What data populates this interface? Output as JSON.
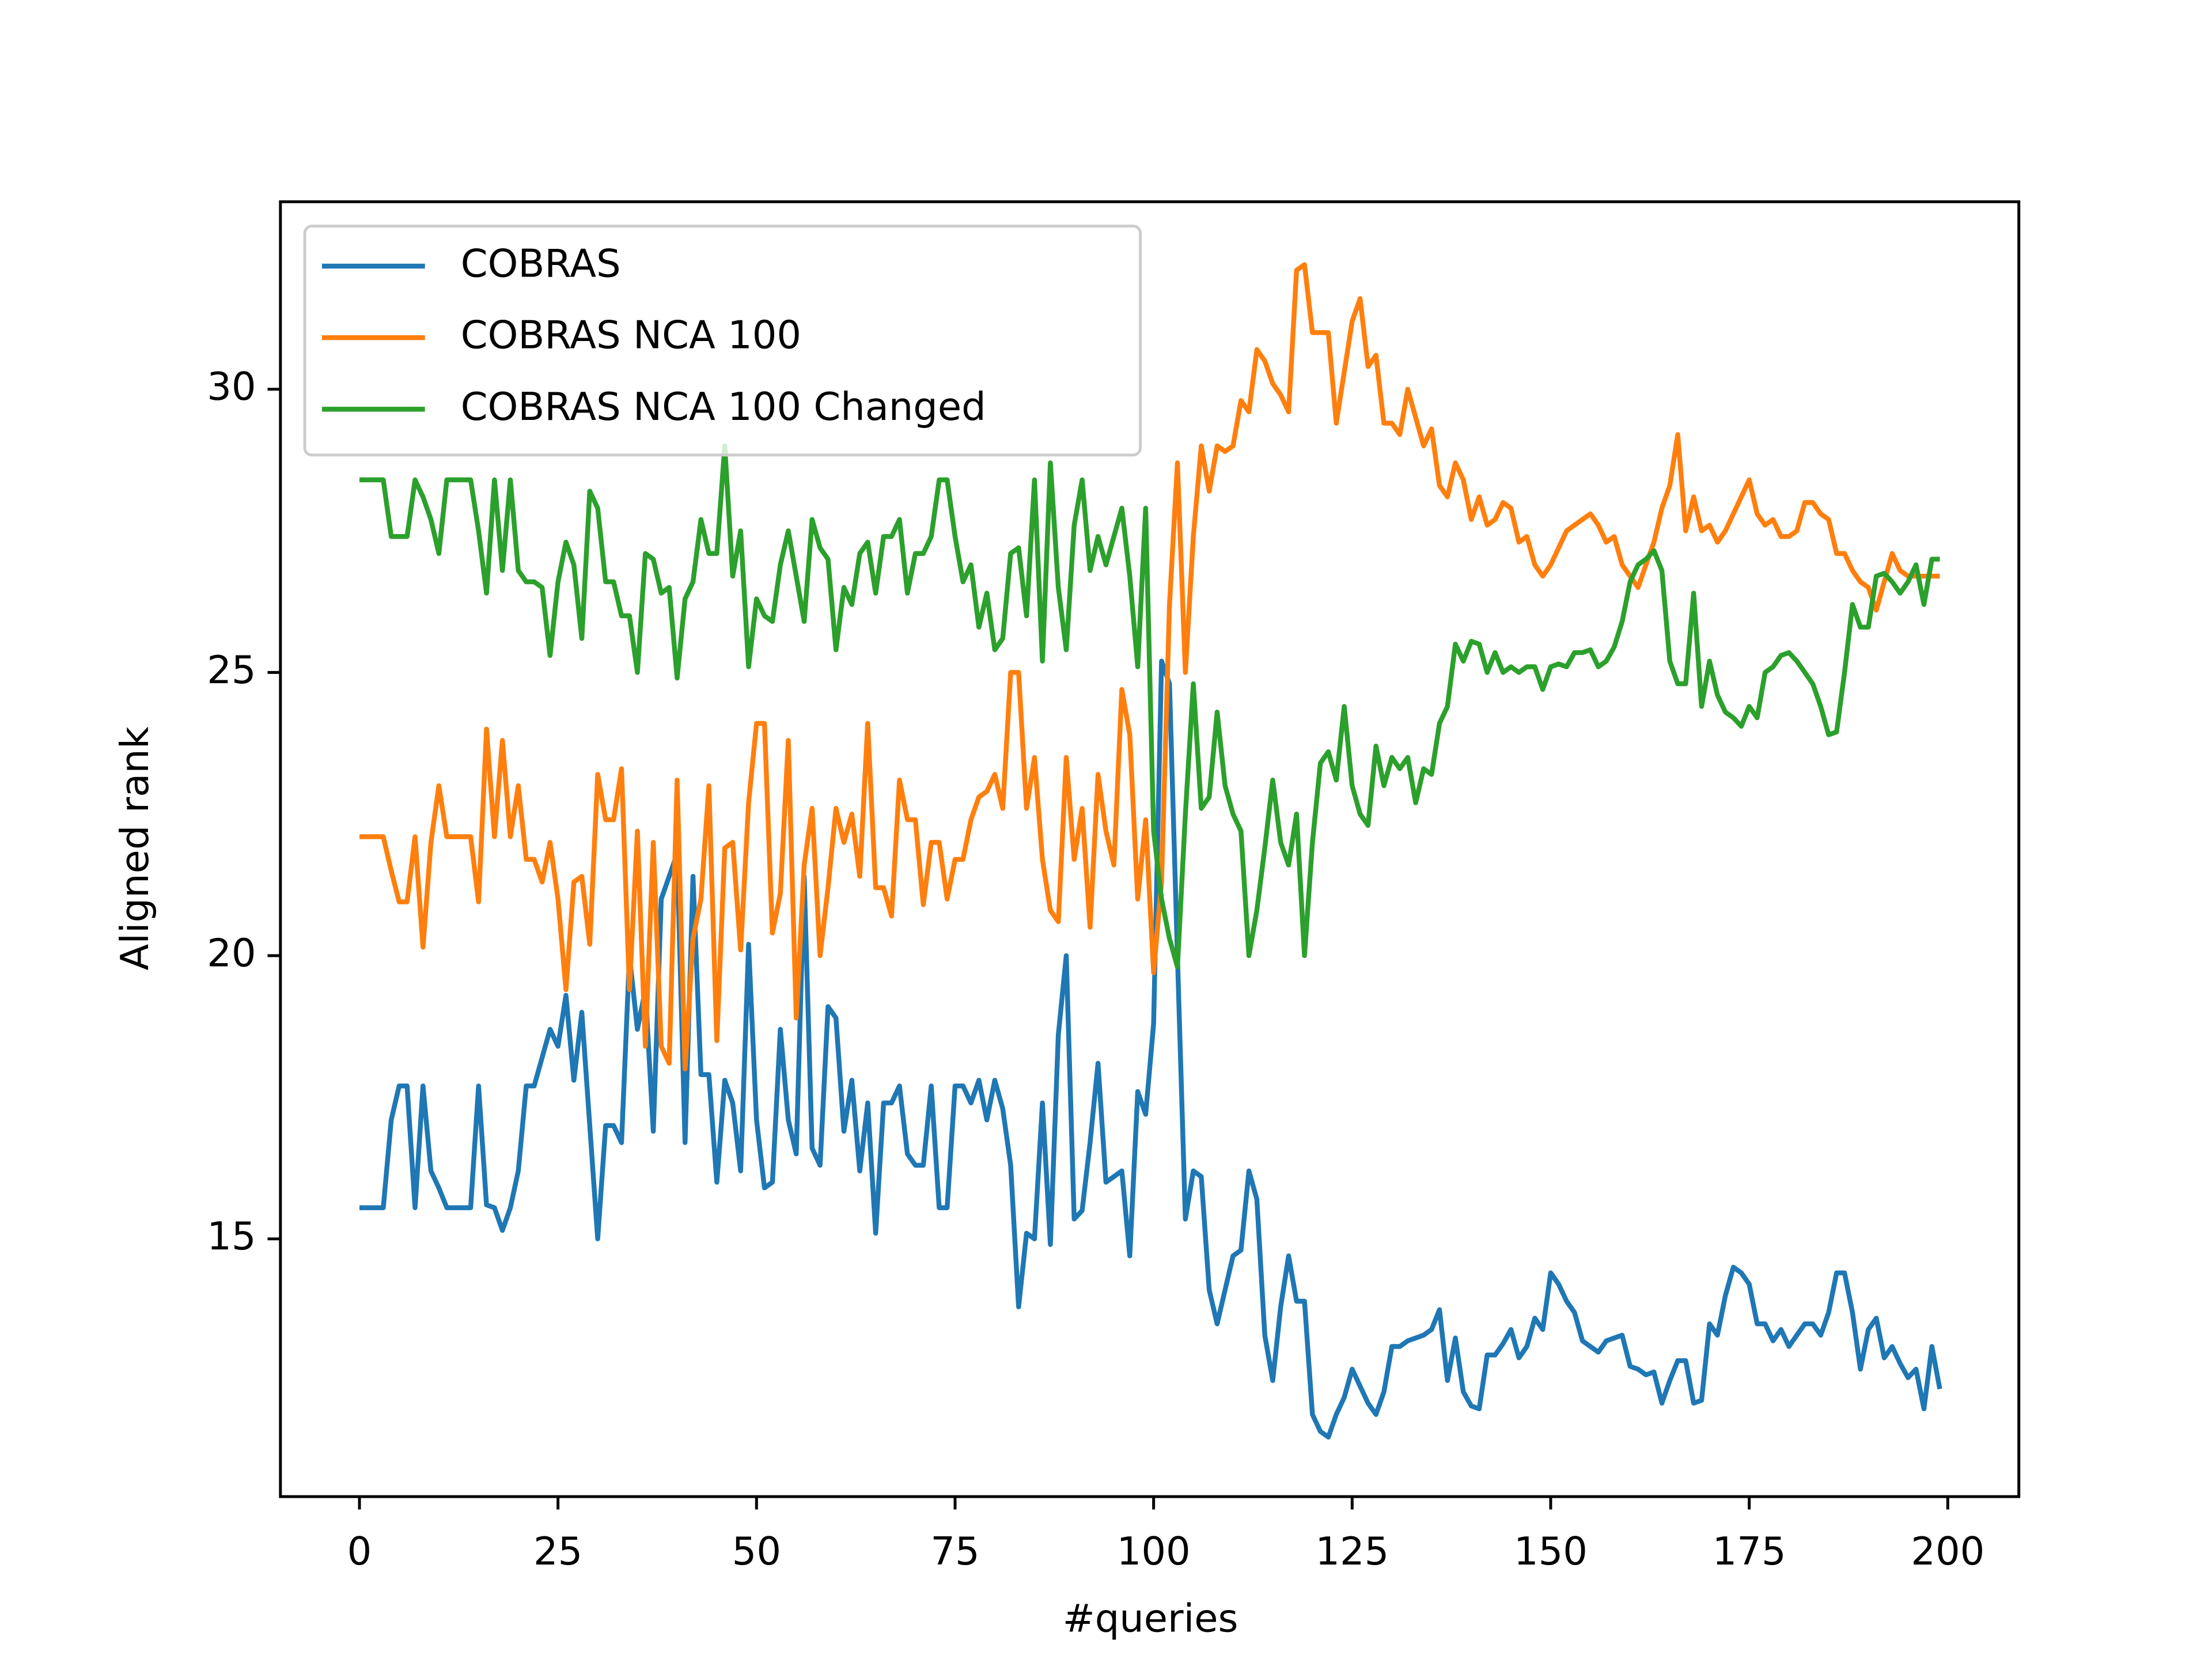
{
  "chart_data": {
    "type": "line",
    "xlabel": "#queries",
    "ylabel": "Aligned rank",
    "xlim": [
      -9.95,
      208.95
    ],
    "ylim": [
      10.45,
      33.31
    ],
    "xticks": [
      0,
      25,
      50,
      75,
      100,
      125,
      150,
      175,
      200
    ],
    "yticks": [
      15,
      20,
      25,
      30
    ],
    "legend": "upper left",
    "x": [
      0,
      1,
      2,
      3,
      4,
      5,
      6,
      7,
      8,
      9,
      10,
      11,
      12,
      13,
      14,
      15,
      16,
      17,
      18,
      19,
      20,
      21,
      22,
      23,
      24,
      25,
      26,
      27,
      28,
      29,
      30,
      31,
      32,
      33,
      34,
      35,
      36,
      37,
      38,
      39,
      40,
      41,
      42,
      43,
      44,
      45,
      46,
      47,
      48,
      49,
      50,
      51,
      52,
      53,
      54,
      55,
      56,
      57,
      58,
      59,
      60,
      61,
      62,
      63,
      64,
      65,
      66,
      67,
      68,
      69,
      70,
      71,
      72,
      73,
      74,
      75,
      76,
      77,
      78,
      79,
      80,
      81,
      82,
      83,
      84,
      85,
      86,
      87,
      88,
      89,
      90,
      91,
      92,
      93,
      94,
      95,
      96,
      97,
      98,
      99,
      100,
      101,
      102,
      103,
      104,
      105,
      106,
      107,
      108,
      109,
      110,
      111,
      112,
      113,
      114,
      115,
      116,
      117,
      118,
      119,
      120,
      121,
      122,
      123,
      124,
      125,
      126,
      127,
      128,
      129,
      130,
      131,
      132,
      133,
      134,
      135,
      136,
      137,
      138,
      139,
      140,
      141,
      142,
      143,
      144,
      145,
      146,
      147,
      148,
      149,
      150,
      151,
      152,
      153,
      154,
      155,
      156,
      157,
      158,
      159,
      160,
      161,
      162,
      163,
      164,
      165,
      166,
      167,
      168,
      169,
      170,
      171,
      172,
      173,
      174,
      175,
      176,
      177,
      178,
      179,
      180,
      181,
      182,
      183,
      184,
      185,
      186,
      187,
      188,
      189,
      190,
      191,
      192,
      193,
      194,
      195,
      196,
      197,
      198,
      199
    ],
    "series": [
      {
        "name": "COBRAS",
        "color": "#1f77b4",
        "values": [
          15.55,
          15.55,
          15.55,
          15.55,
          17.1,
          17.7,
          17.7,
          15.55,
          17.7,
          16.2,
          15.9,
          15.55,
          15.55,
          15.55,
          15.55,
          17.7,
          15.6,
          15.55,
          15.15,
          15.55,
          16.2,
          17.7,
          17.7,
          18.2,
          18.7,
          18.4,
          19.3,
          17.8,
          19.0,
          17.0,
          15.0,
          17.0,
          17.0,
          16.7,
          20.0,
          18.7,
          19.4,
          16.9,
          21.0,
          21.4,
          21.8,
          16.7,
          21.4,
          17.9,
          17.9,
          16.0,
          17.8,
          17.4,
          16.2,
          20.2,
          17.1,
          15.9,
          16.0,
          18.7,
          17.1,
          16.5,
          21.4,
          16.6,
          16.3,
          19.1,
          18.9,
          16.9,
          17.8,
          16.2,
          17.4,
          15.1,
          17.4,
          17.4,
          17.7,
          16.5,
          16.3,
          16.3,
          17.7,
          15.55,
          15.55,
          17.7,
          17.7,
          17.4,
          17.8,
          17.1,
          17.8,
          17.3,
          16.3,
          13.8,
          15.1,
          15.0,
          17.4,
          14.9,
          18.6,
          20.0,
          15.35,
          15.5,
          16.7,
          18.1,
          16.0,
          16.1,
          16.2,
          14.7,
          17.6,
          17.2,
          18.8,
          25.2,
          24.8,
          20.0,
          15.35,
          16.2,
          16.1,
          14.1,
          13.5,
          14.1,
          14.7,
          14.8,
          16.2,
          15.7,
          13.3,
          12.5,
          13.8,
          14.7,
          13.9,
          13.9,
          11.9,
          11.6,
          11.5,
          11.9,
          12.2,
          12.7,
          12.4,
          12.1,
          11.9,
          12.3,
          13.1,
          13.1,
          13.2,
          13.25,
          13.3,
          13.4,
          13.75,
          12.5,
          13.25,
          12.3,
          12.05,
          12.0,
          12.95,
          12.95,
          13.15,
          13.4,
          12.9,
          13.1,
          13.6,
          13.4,
          14.4,
          14.2,
          13.9,
          13.7,
          13.2,
          13.1,
          13.0,
          13.2,
          13.25,
          13.3,
          12.75,
          12.7,
          12.6,
          12.65,
          12.1,
          12.5,
          12.85,
          12.85,
          12.1,
          12.15,
          13.5,
          13.3,
          14.0,
          14.5,
          14.4,
          14.2,
          13.5,
          13.5,
          13.2,
          13.4,
          13.1,
          13.3,
          13.5,
          13.5,
          13.3,
          13.7,
          14.4,
          14.4,
          13.7,
          12.7,
          13.4,
          13.6,
          12.9,
          13.1,
          12.8,
          12.55,
          12.7,
          12.0,
          13.1,
          12.35
        ]
      },
      {
        "name": "COBRAS NCA 100",
        "color": "#ff7f0e",
        "values": [
          22.1,
          22.1,
          22.1,
          22.1,
          21.5,
          20.95,
          20.95,
          22.1,
          20.15,
          22.0,
          23.0,
          22.1,
          22.1,
          22.1,
          22.1,
          20.95,
          24.0,
          22.1,
          23.8,
          22.1,
          23.0,
          21.7,
          21.7,
          21.3,
          22.0,
          21.0,
          19.4,
          21.3,
          21.4,
          20.2,
          23.2,
          22.4,
          22.4,
          23.3,
          19.4,
          22.2,
          18.4,
          22.0,
          18.4,
          18.1,
          23.1,
          18.0,
          20.3,
          21.0,
          23.0,
          18.5,
          21.9,
          22.0,
          20.1,
          22.7,
          24.1,
          24.1,
          20.4,
          21.1,
          23.8,
          18.9,
          21.6,
          22.6,
          20.0,
          21.2,
          22.6,
          22.0,
          22.5,
          21.4,
          24.1,
          21.2,
          21.2,
          20.7,
          23.1,
          22.4,
          22.4,
          20.9,
          22.0,
          22.0,
          21.0,
          21.7,
          21.7,
          22.4,
          22.8,
          22.9,
          23.2,
          22.6,
          25.0,
          25.0,
          22.6,
          23.5,
          21.7,
          20.8,
          20.6,
          23.5,
          21.7,
          22.6,
          20.5,
          23.2,
          22.2,
          21.6,
          24.7,
          23.9,
          21.0,
          22.4,
          19.7,
          21.3,
          26.2,
          28.7,
          25.0,
          27.4,
          29.0,
          28.2,
          29.0,
          28.9,
          29.0,
          29.8,
          29.6,
          30.7,
          30.5,
          30.1,
          29.9,
          29.6,
          32.1,
          32.2,
          31.0,
          31.0,
          31.0,
          29.4,
          30.3,
          31.2,
          31.6,
          30.4,
          30.6,
          29.4,
          29.4,
          29.2,
          30.0,
          29.5,
          29.0,
          29.3,
          28.3,
          28.1,
          28.7,
          28.4,
          27.7,
          28.1,
          27.6,
          27.7,
          28.0,
          27.9,
          27.3,
          27.4,
          26.9,
          26.7,
          26.9,
          27.2,
          27.5,
          27.6,
          27.7,
          27.8,
          27.6,
          27.3,
          27.4,
          26.9,
          26.7,
          26.5,
          26.9,
          27.3,
          27.9,
          28.3,
          29.2,
          27.5,
          28.1,
          27.5,
          27.6,
          27.3,
          27.5,
          27.8,
          28.1,
          28.4,
          27.8,
          27.6,
          27.7,
          27.4,
          27.4,
          27.5,
          28.0,
          28.0,
          27.8,
          27.7,
          27.1,
          27.1,
          26.8,
          26.6,
          26.5,
          26.1,
          26.6,
          27.1,
          26.8,
          26.7,
          26.7,
          26.7,
          26.7,
          26.7
        ]
      },
      {
        "name": "COBRAS NCA 100 Changed",
        "color": "#2ca02c",
        "values": [
          28.4,
          28.4,
          28.4,
          28.4,
          27.4,
          27.4,
          27.4,
          28.4,
          28.1,
          27.7,
          27.1,
          28.4,
          28.4,
          28.4,
          28.4,
          27.5,
          26.4,
          28.4,
          26.8,
          28.4,
          26.8,
          26.6,
          26.6,
          26.5,
          25.3,
          26.6,
          27.3,
          26.9,
          25.6,
          28.2,
          27.9,
          26.6,
          26.6,
          26.0,
          26.0,
          25.0,
          27.1,
          27.0,
          26.4,
          26.5,
          24.9,
          26.3,
          26.6,
          27.7,
          27.1,
          27.1,
          29.0,
          26.7,
          27.5,
          25.1,
          26.3,
          26.0,
          25.9,
          26.9,
          27.5,
          26.7,
          25.9,
          27.7,
          27.2,
          27.0,
          25.4,
          26.5,
          26.2,
          27.1,
          27.3,
          26.4,
          27.4,
          27.4,
          27.7,
          26.4,
          27.1,
          27.1,
          27.4,
          28.4,
          28.4,
          27.4,
          26.6,
          26.9,
          25.8,
          26.4,
          25.4,
          25.6,
          27.1,
          27.2,
          26.0,
          28.4,
          25.2,
          28.7,
          26.5,
          25.4,
          27.6,
          28.4,
          26.8,
          27.4,
          26.9,
          27.4,
          27.9,
          26.7,
          25.1,
          27.9,
          22.2,
          21.0,
          20.3,
          19.8,
          22.5,
          24.8,
          22.6,
          22.8,
          24.3,
          23.0,
          22.5,
          22.2,
          20.0,
          20.8,
          21.9,
          23.1,
          22.0,
          21.6,
          22.5,
          20.0,
          22.0,
          23.4,
          23.6,
          23.1,
          24.4,
          23.0,
          22.5,
          22.3,
          23.7,
          23.0,
          23.5,
          23.3,
          23.5,
          22.7,
          23.3,
          23.2,
          24.1,
          24.4,
          25.5,
          25.2,
          25.55,
          25.5,
          25.0,
          25.35,
          25.0,
          25.1,
          25.0,
          25.1,
          25.1,
          24.7,
          25.1,
          25.15,
          25.1,
          25.35,
          25.35,
          25.4,
          25.1,
          25.2,
          25.45,
          25.9,
          26.6,
          26.9,
          27.0,
          27.15,
          26.8,
          25.2,
          24.8,
          24.8,
          26.4,
          24.4,
          25.2,
          24.6,
          24.3,
          24.2,
          24.05,
          24.4,
          24.2,
          25.0,
          25.1,
          25.3,
          25.35,
          25.2,
          25.0,
          24.8,
          24.4,
          23.9,
          23.95,
          25.0,
          26.2,
          25.8,
          25.8,
          26.7,
          26.75,
          26.6,
          26.4,
          26.6,
          26.9,
          26.2,
          27.0,
          27.0
        ]
      }
    ]
  }
}
